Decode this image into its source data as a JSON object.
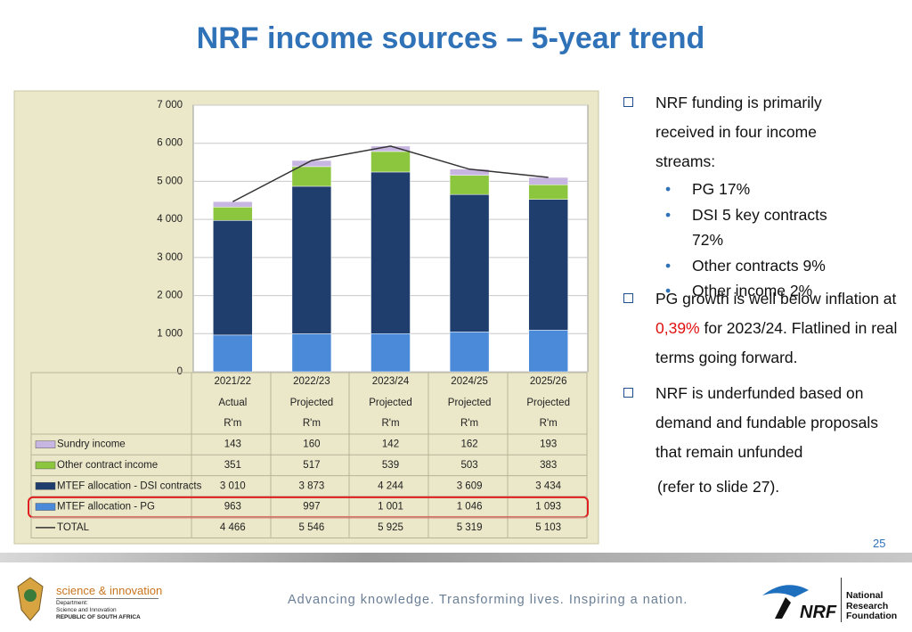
{
  "title": "NRF income sources – 5-year trend",
  "chart_data": {
    "type": "bar",
    "stacked": true,
    "categories": [
      "2021/22",
      "2022/23",
      "2023/24",
      "2024/25",
      "2025/26"
    ],
    "category_notes": [
      "Actual",
      "Projected",
      "Projected",
      "Projected",
      "Projected"
    ],
    "unit": "R'm",
    "ylim": [
      0,
      7000
    ],
    "yticks": [
      0,
      {
        "value": 1000,
        "label": "1 000"
      },
      {
        "value": 2000,
        "label": "2 000"
      },
      {
        "value": 3000,
        "label": "3 000"
      },
      {
        "value": 4000,
        "label": "4 000"
      },
      {
        "value": 5000,
        "label": "5 000"
      },
      {
        "value": 6000,
        "label": "6 000"
      },
      {
        "value": 7000,
        "label": "7 000"
      }
    ],
    "grid": true,
    "series": [
      {
        "name": "Sundry income",
        "color": "#c8b6e2",
        "values": [
          143,
          160,
          142,
          162,
          193
        ]
      },
      {
        "name": "Other contract income",
        "color": "#8cc63f",
        "values": [
          351,
          517,
          539,
          503,
          383
        ]
      },
      {
        "name": "MTEF allocation - DSI contracts",
        "color": "#1f3e6e",
        "values": [
          3010,
          3873,
          4244,
          3609,
          3434
        ],
        "value_labels": [
          "3 010",
          "3 873",
          "4 244",
          "3 609",
          "3 434"
        ]
      },
      {
        "name": "MTEF allocation - PG",
        "color": "#4a8ad8",
        "values": [
          963,
          997,
          1001,
          1046,
          1093
        ],
        "value_labels": [
          "963",
          "997",
          "1 001",
          "1 046",
          "1 093"
        ],
        "highlight": true
      },
      {
        "name": "TOTAL",
        "type": "line",
        "color": "#333333",
        "values": [
          4466,
          5546,
          5925,
          5319,
          5103
        ],
        "value_labels": [
          "4 466",
          "5 546",
          "5 925",
          "5 319",
          "5 103"
        ]
      }
    ]
  },
  "bullets": [
    {
      "text": "NRF funding is primarily received in four income streams:",
      "items": [
        "PG 17%",
        "DSI 5 key contracts 72%",
        "Other contracts 9%",
        "Other income 2%"
      ]
    },
    {
      "parts": [
        "PG growth is well below inflation at ",
        "0,39%",
        " for 2023/24. Flatlined in real terms going forward."
      ]
    },
    {
      "text": "NRF is underfunded based on demand and fundable proposals that remain unfunded",
      "note": "(refer to slide 27)."
    }
  ],
  "slide_number": "25",
  "footer": {
    "dept_brand": "science & innovation",
    "dept_lines": [
      "Department:",
      "Science and Innovation",
      "REPUBLIC OF SOUTH AFRICA"
    ],
    "tagline": "Advancing knowledge. Transforming lives. Inspiring a nation.",
    "logo": "NRF",
    "org_lines": [
      "National",
      "Research",
      "Foundation"
    ]
  }
}
